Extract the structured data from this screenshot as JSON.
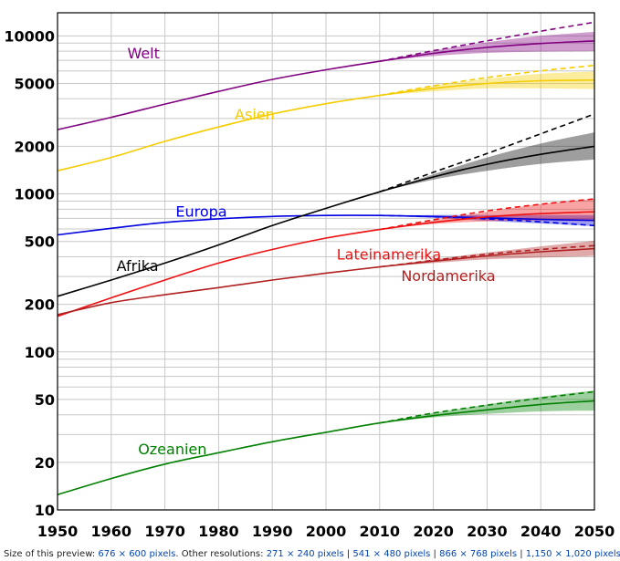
{
  "chart_data": {
    "type": "line",
    "title": "",
    "xlabel": "",
    "ylabel": "",
    "yscale": "log",
    "xlim": [
      1950,
      2050
    ],
    "ylim": [
      10,
      14000
    ],
    "grid": true,
    "xticks": [
      "1950",
      "1960",
      "1970",
      "1980",
      "1990",
      "2000",
      "2010",
      "2020",
      "2030",
      "2040",
      "2050"
    ],
    "yticks": [
      {
        "value": 10,
        "label": "10"
      },
      {
        "value": 20,
        "label": "20"
      },
      {
        "value": 50,
        "label": "50"
      },
      {
        "value": 100,
        "label": "100"
      },
      {
        "value": 200,
        "label": "200"
      },
      {
        "value": 500,
        "label": "500"
      },
      {
        "value": 1000,
        "label": "1000"
      },
      {
        "value": 2000,
        "label": "2000"
      },
      {
        "value": 5000,
        "label": "5000"
      },
      {
        "value": 10000,
        "label": "10000"
      }
    ],
    "series": [
      {
        "name": "Welt",
        "color": "#800080",
        "label_at": [
          1963,
          7200
        ],
        "x": [
          1950,
          1960,
          1970,
          1980,
          1990,
          2000,
          2010,
          2020,
          2030,
          2040,
          2050
        ],
        "values": [
          2550,
          3050,
          3700,
          4450,
          5300,
          6100,
          6900,
          7750,
          8450,
          8950,
          9300
        ],
        "high": [
          null,
          null,
          null,
          null,
          null,
          null,
          6900,
          8050,
          9100,
          10000,
          10600
        ],
        "low": [
          null,
          null,
          null,
          null,
          null,
          null,
          6900,
          7450,
          7800,
          7950,
          8000
        ],
        "dashed": [
          null,
          null,
          null,
          null,
          null,
          null,
          6900,
          8050,
          9300,
          10700,
          12200
        ]
      },
      {
        "name": "Asien",
        "color": "#f5cc00",
        "label_at": [
          1983,
          2950
        ],
        "x": [
          1950,
          1960,
          1970,
          1980,
          1990,
          2000,
          2010,
          2020,
          2030,
          2040,
          2050
        ],
        "values": [
          1400,
          1700,
          2150,
          2650,
          3200,
          3720,
          4200,
          4650,
          5000,
          5200,
          5250
        ],
        "high": [
          null,
          null,
          null,
          null,
          null,
          null,
          4200,
          4830,
          5350,
          5750,
          5950
        ],
        "low": [
          null,
          null,
          null,
          null,
          null,
          null,
          4200,
          4450,
          4650,
          4650,
          4600
        ],
        "dashed": [
          null,
          null,
          null,
          null,
          null,
          null,
          4200,
          4830,
          5450,
          6000,
          6500
        ]
      },
      {
        "name": "Europa",
        "color": "#0000e0",
        "label_at": [
          1972,
          720
        ],
        "x": [
          1950,
          1960,
          1970,
          1980,
          1990,
          2000,
          2010,
          2020,
          2030,
          2040,
          2050
        ],
        "values": [
          550,
          605,
          660,
          695,
          720,
          730,
          730,
          720,
          705,
          690,
          680
        ],
        "high": [
          null,
          null,
          null,
          null,
          null,
          null,
          730,
          735,
          735,
          735,
          735
        ],
        "low": [
          null,
          null,
          null,
          null,
          null,
          null,
          730,
          705,
          675,
          650,
          625
        ],
        "dashed": [
          null,
          null,
          null,
          null,
          null,
          null,
          730,
          718,
          695,
          665,
          630
        ]
      },
      {
        "name": "Afrika",
        "color": "#000000",
        "label_at": [
          1961,
          325
        ],
        "x": [
          1950,
          1960,
          1970,
          1980,
          1990,
          2000,
          2010,
          2020,
          2030,
          2040,
          2050
        ],
        "values": [
          225,
          285,
          365,
          475,
          630,
          810,
          1030,
          1280,
          1540,
          1780,
          2000
        ],
        "high": [
          null,
          null,
          null,
          null,
          null,
          null,
          1030,
          1330,
          1700,
          2080,
          2450
        ],
        "low": [
          null,
          null,
          null,
          null,
          null,
          null,
          1030,
          1230,
          1400,
          1550,
          1650
        ],
        "dashed": [
          null,
          null,
          null,
          null,
          null,
          null,
          1030,
          1370,
          1800,
          2400,
          3200
        ]
      },
      {
        "name": "Lateinamerika",
        "color": "#ee1010",
        "label_at": [
          2002,
          385
        ],
        "x": [
          1950,
          1960,
          1970,
          1980,
          1990,
          2000,
          2010,
          2020,
          2030,
          2040,
          2050
        ],
        "values": [
          168,
          220,
          285,
          365,
          445,
          525,
          595,
          660,
          715,
          750,
          770
        ],
        "high": [
          null,
          null,
          null,
          null,
          null,
          null,
          595,
          680,
          770,
          860,
          930
        ],
        "low": [
          null,
          null,
          null,
          null,
          null,
          null,
          595,
          645,
          670,
          680,
          670
        ],
        "dashed": [
          null,
          null,
          null,
          null,
          null,
          null,
          595,
          685,
          780,
          860,
          930
        ]
      },
      {
        "name": "Nordamerika",
        "color": "#b02020",
        "label_at": [
          2014,
          282
        ],
        "x": [
          1950,
          1960,
          1970,
          1980,
          1990,
          2000,
          2010,
          2020,
          2030,
          2040,
          2050
        ],
        "values": [
          172,
          205,
          230,
          255,
          285,
          315,
          345,
          375,
          405,
          430,
          450
        ],
        "high": [
          null,
          null,
          null,
          null,
          null,
          null,
          345,
          385,
          425,
          465,
          505
        ],
        "low": [
          null,
          null,
          null,
          null,
          null,
          null,
          345,
          365,
          385,
          395,
          405
        ],
        "dashed": [
          null,
          null,
          null,
          null,
          null,
          null,
          345,
          380,
          415,
          445,
          470
        ]
      },
      {
        "name": "Ozeanien",
        "color": "#008000",
        "label_at": [
          1965,
          22.5
        ],
        "x": [
          1950,
          1960,
          1970,
          1980,
          1990,
          2000,
          2010,
          2020,
          2030,
          2040,
          2050
        ],
        "values": [
          12.5,
          15.8,
          19.5,
          23,
          27,
          31,
          35.5,
          39.5,
          43,
          46.5,
          49
        ],
        "high": [
          null,
          null,
          null,
          null,
          null,
          null,
          35.5,
          41,
          46.5,
          52,
          57
        ],
        "low": [
          null,
          null,
          null,
          null,
          null,
          null,
          35.5,
          38.5,
          40.5,
          42,
          42.5
        ],
        "dashed": [
          null,
          null,
          null,
          null,
          null,
          null,
          35.5,
          41,
          46,
          51,
          56
        ]
      }
    ]
  },
  "caption": {
    "prefix": "Size of this preview: ",
    "preview_link": "676 × 600 pixels",
    "middle": ". Other resolutions: ",
    "links": [
      "271 × 240 pixels",
      "541 × 480 pixels",
      "866 × 768 pixels",
      "1,150 × 1,020 pixels"
    ],
    "separator": " | ",
    "suffix": "."
  }
}
